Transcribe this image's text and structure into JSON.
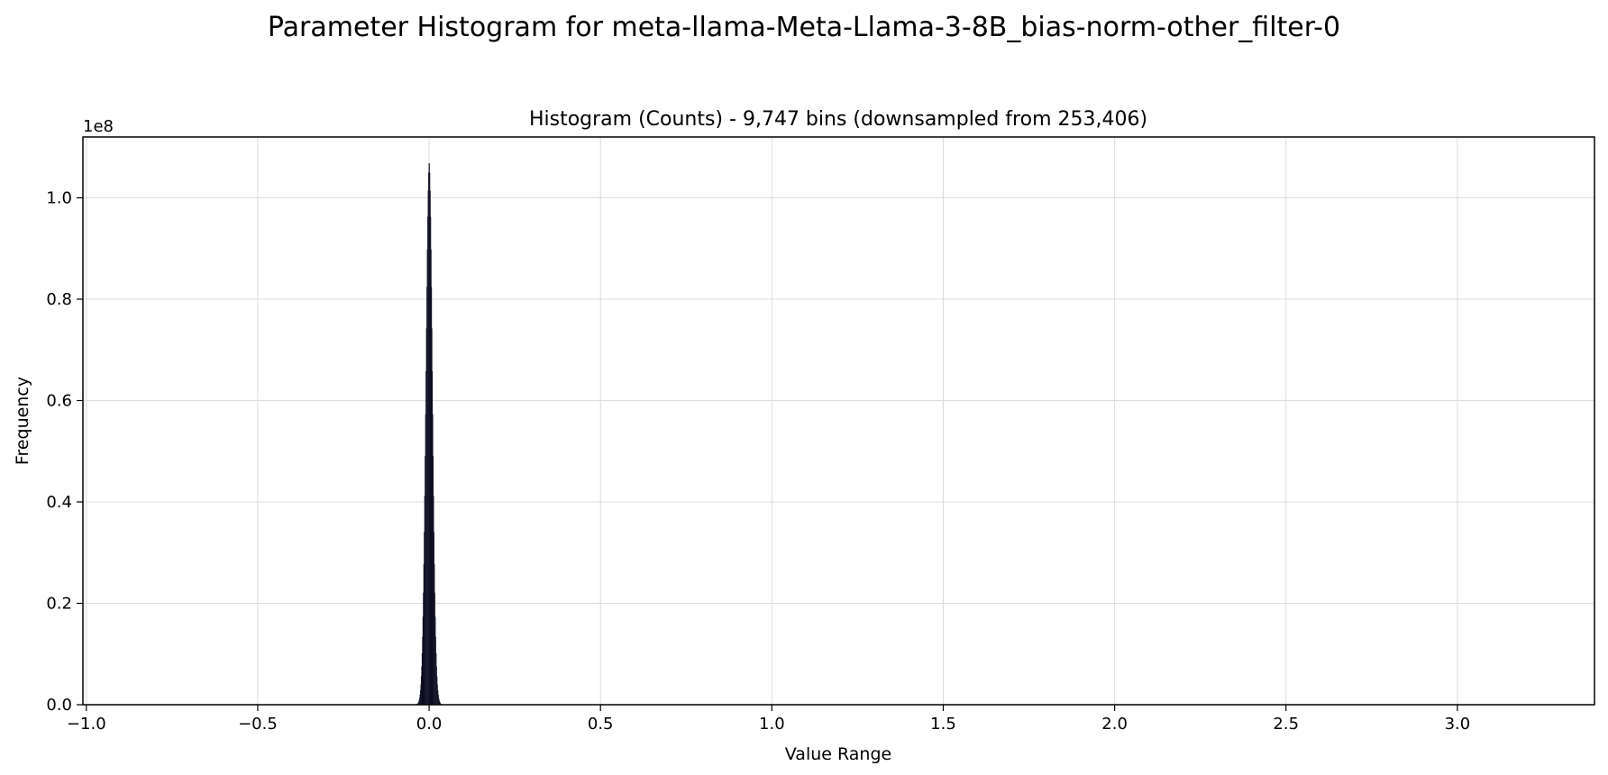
{
  "chart_data": {
    "type": "bar",
    "suptitle": "Parameter Histogram for meta-llama-Meta-Llama-3-8B_bias-norm-other_filter-0",
    "title": "Histogram (Counts) - 9,747 bins (downsampled from 253,406)",
    "xlabel": "Value Range",
    "ylabel": "Frequency",
    "y_offset_label": "1e8",
    "y_scale_factor": 100000000,
    "xlim": [
      -1.01,
      3.4
    ],
    "ylim": [
      0,
      112000000
    ],
    "xticks": [
      -1.0,
      -0.5,
      0.0,
      0.5,
      1.0,
      1.5,
      2.0,
      2.5,
      3.0
    ],
    "xtick_labels": [
      "−1.0",
      "−0.5",
      "0.0",
      "0.5",
      "1.0",
      "1.5",
      "2.0",
      "2.5",
      "3.0"
    ],
    "yticks": [
      0,
      20000000,
      40000000,
      60000000,
      80000000,
      100000000
    ],
    "ytick_labels": [
      "0.0",
      "0.2",
      "0.4",
      "0.6",
      "0.8",
      "1.0"
    ],
    "grid": true,
    "bar_color": "#0f0f23",
    "peak": {
      "x": 0.0,
      "y": 107000000,
      "sigma": 0.0095,
      "x_min": -0.05,
      "x_max": 0.05,
      "n_bins": 80
    }
  }
}
